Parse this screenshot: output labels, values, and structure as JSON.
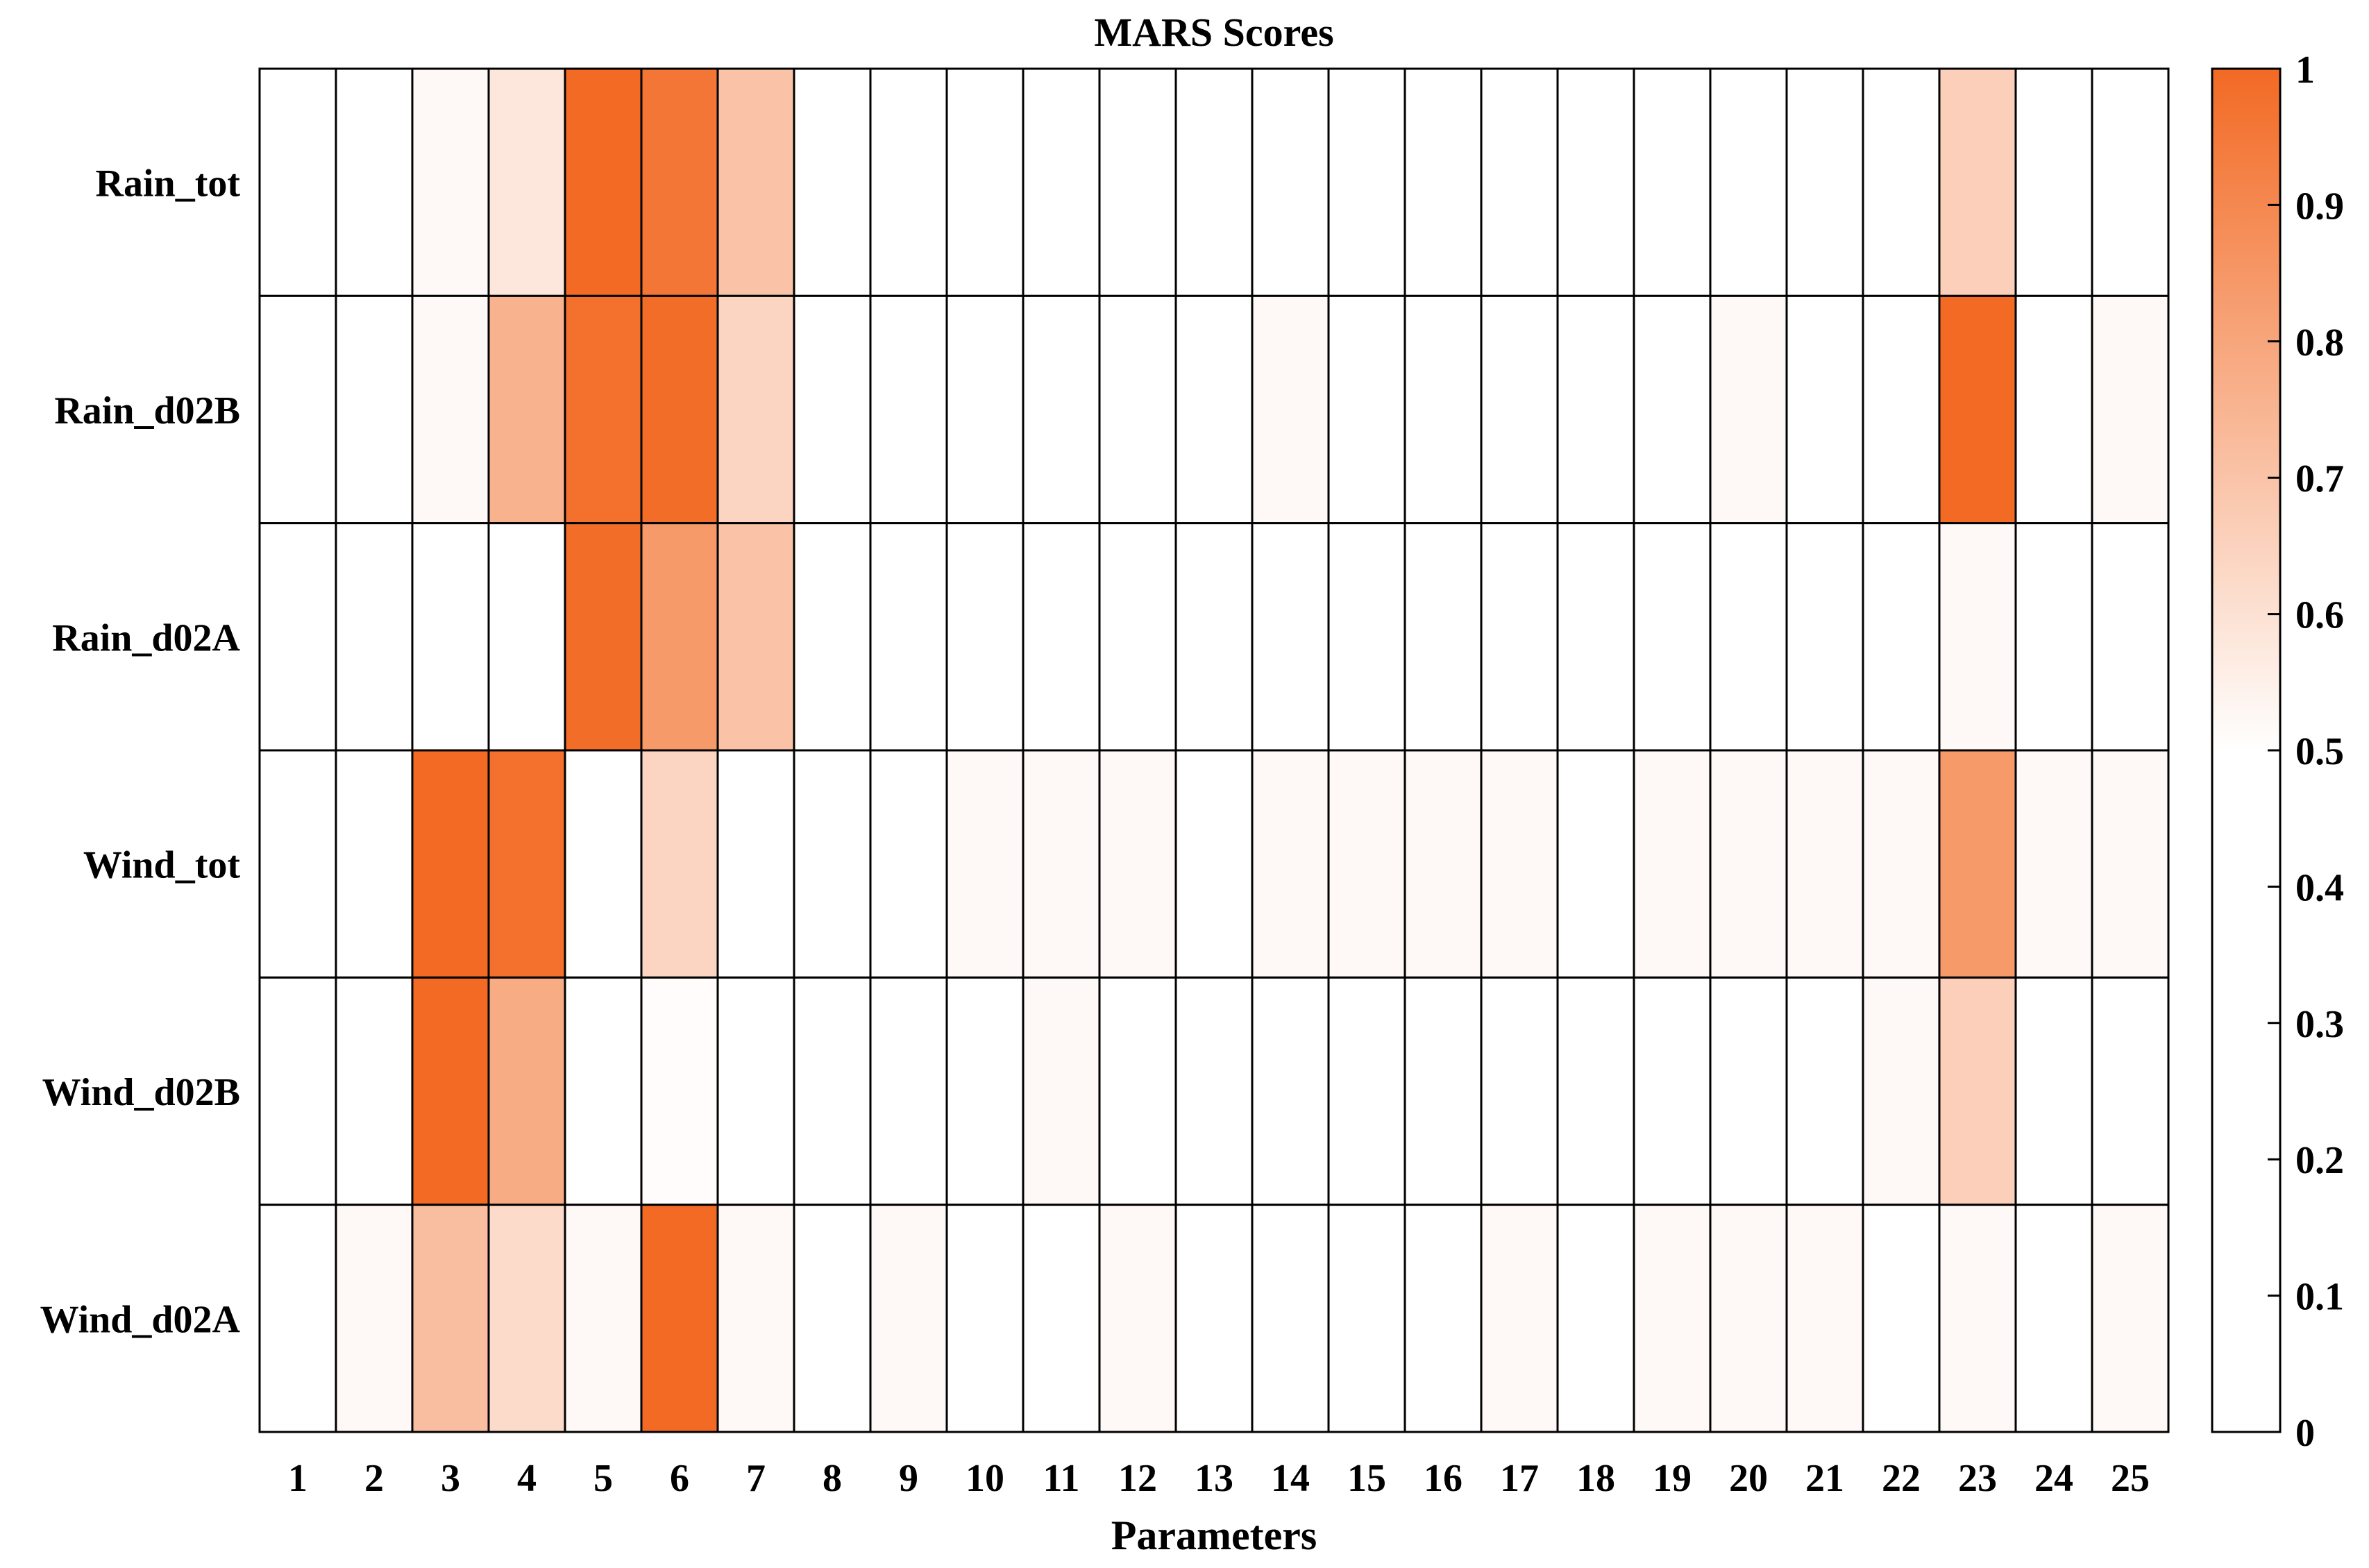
{
  "chart_data": {
    "type": "heatmap",
    "title": "MARS Scores",
    "xlabel": "Parameters",
    "ylabel": "",
    "x_categories": [
      "1",
      "2",
      "3",
      "4",
      "5",
      "6",
      "7",
      "8",
      "9",
      "10",
      "11",
      "12",
      "13",
      "14",
      "15",
      "16",
      "17",
      "18",
      "19",
      "20",
      "21",
      "22",
      "23",
      "24",
      "25"
    ],
    "y_categories": [
      "Rain_tot",
      "Rain_d02B",
      "Rain_d02A",
      "Wind_tot",
      "Wind_d02B",
      "Wind_d02A"
    ],
    "values": [
      [
        0.5,
        0.5,
        0.52,
        0.58,
        1.0,
        0.96,
        0.7,
        0.5,
        0.5,
        0.5,
        0.5,
        0.5,
        0.5,
        0.5,
        0.5,
        0.5,
        0.5,
        0.5,
        0.5,
        0.5,
        0.5,
        0.5,
        0.66,
        0.5,
        0.5
      ],
      [
        0.5,
        0.5,
        0.52,
        0.76,
        0.98,
        0.99,
        0.64,
        0.5,
        0.5,
        0.5,
        0.5,
        0.5,
        0.5,
        0.52,
        0.5,
        0.5,
        0.5,
        0.5,
        0.5,
        0.52,
        0.5,
        0.5,
        1.0,
        0.5,
        0.52
      ],
      [
        0.5,
        0.5,
        0.5,
        0.5,
        0.99,
        0.84,
        0.7,
        0.5,
        0.5,
        0.5,
        0.5,
        0.5,
        0.5,
        0.5,
        0.5,
        0.5,
        0.5,
        0.5,
        0.5,
        0.5,
        0.5,
        0.5,
        0.52,
        0.5,
        0.5
      ],
      [
        0.5,
        0.5,
        1.0,
        0.98,
        0.5,
        0.64,
        0.5,
        0.5,
        0.5,
        0.52,
        0.52,
        0.52,
        0.5,
        0.52,
        0.52,
        0.52,
        0.52,
        0.5,
        0.52,
        0.52,
        0.52,
        0.52,
        0.84,
        0.52,
        0.52
      ],
      [
        0.5,
        0.5,
        1.0,
        0.78,
        0.5,
        0.51,
        0.5,
        0.5,
        0.5,
        0.5,
        0.52,
        0.5,
        0.5,
        0.5,
        0.5,
        0.5,
        0.5,
        0.5,
        0.5,
        0.5,
        0.5,
        0.52,
        0.66,
        0.5,
        0.5
      ],
      [
        0.5,
        0.52,
        0.72,
        0.62,
        0.52,
        1.0,
        0.52,
        0.5,
        0.52,
        0.5,
        0.5,
        0.52,
        0.5,
        0.5,
        0.5,
        0.5,
        0.52,
        0.5,
        0.52,
        0.52,
        0.52,
        0.5,
        0.52,
        0.5,
        0.52
      ]
    ],
    "colorbar": {
      "range": [
        0,
        1
      ],
      "ticks": [
        "0",
        "0.1",
        "0.2",
        "0.3",
        "0.4",
        "0.5",
        "0.6",
        "0.7",
        "0.8",
        "0.9",
        "1"
      ],
      "low_color": "#ffffff",
      "high_color": "#f26a24"
    },
    "grid": true
  }
}
